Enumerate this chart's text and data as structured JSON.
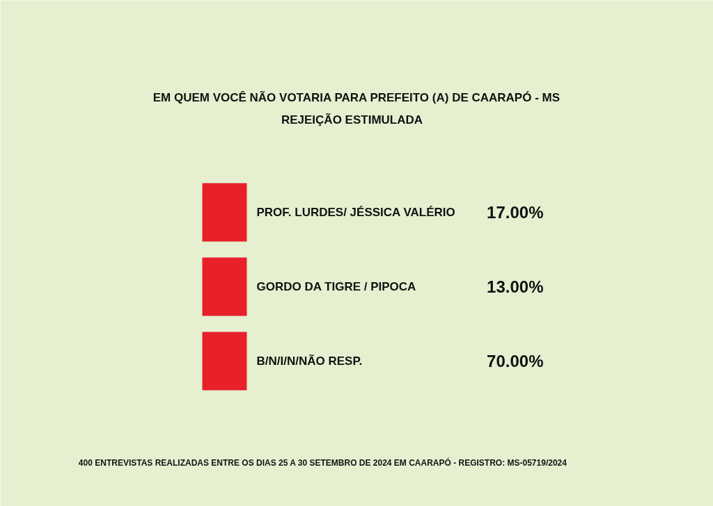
{
  "chart_data": {
    "type": "other",
    "title": "EM QUEM VOCÊ NÃO VOTARIA PARA PREFEITO (A) DE CAARAPÓ - MS",
    "subtitle": "REJEIÇÃO ESTIMULADA",
    "categories": [
      "PROF. LURDES/ JÉSSICA VALÉRIO",
      "GORDO DA TIGRE / PIPOCA",
      "B/N/I/N/NÃO RESP."
    ],
    "values": [
      17,
      13,
      70
    ],
    "value_labels": [
      "17.00%",
      "13.00%",
      "70.00%"
    ],
    "colors": [
      "#e8202a",
      "#e8202a",
      "#e8202a"
    ],
    "annotations": [
      "400 ENTREVISTAS REALIZADAS ENTRE OS DIAS 25 A 30  SETEMBRO DE 2024 EM CAARAPÓ - REGISTRO: MS-05719/2024"
    ]
  }
}
